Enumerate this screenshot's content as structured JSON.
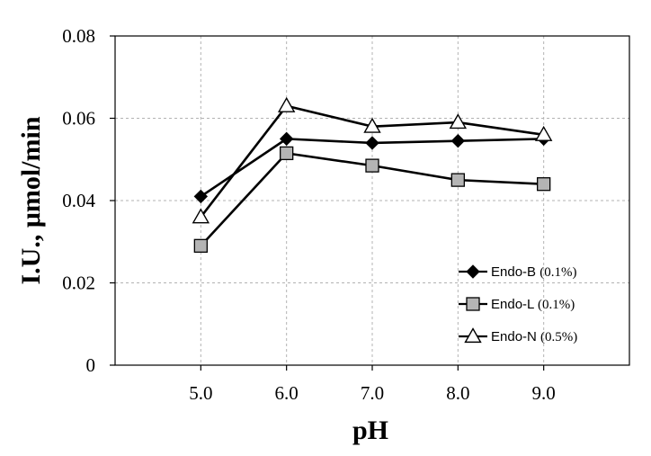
{
  "chart_data": {
    "type": "line",
    "title": "",
    "xlabel": "pH",
    "ylabel": "I.U., μmol/min",
    "x": [
      5.0,
      6.0,
      7.0,
      8.0,
      9.0
    ],
    "x_tick_labels": [
      "5.0",
      "6.0",
      "7.0",
      "8.0",
      "9.0"
    ],
    "xlim": [
      4.0,
      10.0
    ],
    "y_tick_labels": [
      "0",
      "0.02",
      "0.04",
      "0.06",
      "0.08"
    ],
    "y_ticks": [
      0,
      0.02,
      0.04,
      0.06,
      0.08
    ],
    "ylim": [
      0,
      0.08
    ],
    "grid": true,
    "legend_position": "bottom-right",
    "series": [
      {
        "name": "Endo-B",
        "legend_label": "Endo-B",
        "legend_note": "(0.1%)",
        "marker": "diamond",
        "values": [
          0.041,
          0.055,
          0.054,
          0.0545,
          0.055
        ]
      },
      {
        "name": "Endo-L",
        "legend_label": "Endo-L",
        "legend_note": "(0.1%)",
        "marker": "square",
        "values": [
          0.029,
          0.0515,
          0.0485,
          0.045,
          0.044
        ]
      },
      {
        "name": "Endo-N",
        "legend_label": "Endo-N",
        "legend_note": "(0.5%)",
        "marker": "triangle",
        "values": [
          0.036,
          0.063,
          0.058,
          0.059,
          0.056
        ]
      }
    ],
    "colors": {
      "line": "#000000",
      "grid": "#b3b3b3",
      "diamond_fill": "#000000",
      "square_fill": "#b4b4b4",
      "triangle_fill": "#ffffff"
    }
  }
}
